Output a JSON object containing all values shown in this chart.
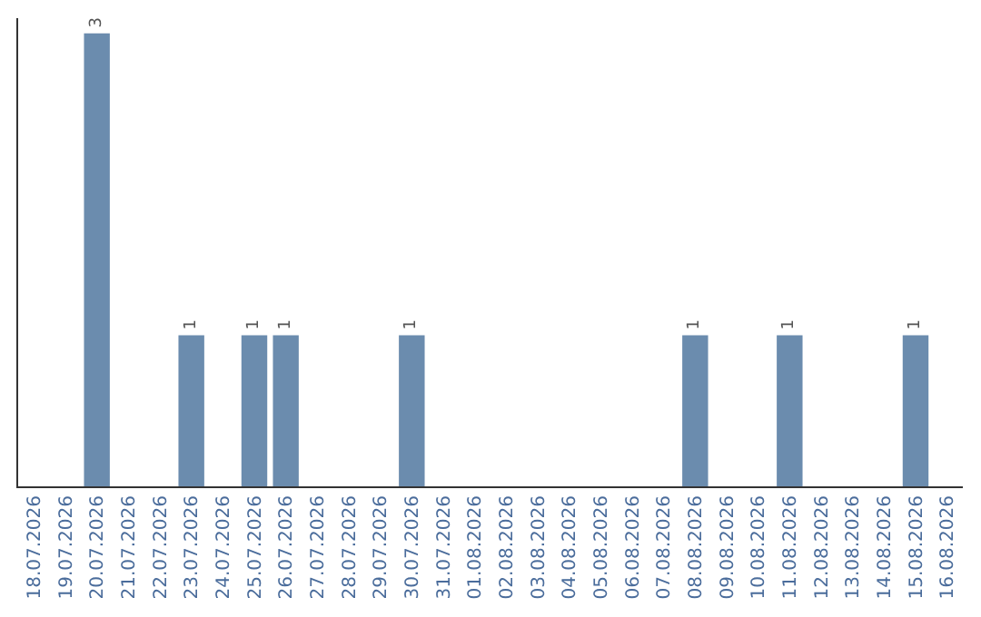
{
  "chart_data": {
    "type": "bar",
    "categories": [
      "18.07.2026",
      "19.07.2026",
      "20.07.2026",
      "21.07.2026",
      "22.07.2026",
      "23.07.2026",
      "24.07.2026",
      "25.07.2026",
      "26.07.2026",
      "27.07.2026",
      "28.07.2026",
      "29.07.2026",
      "30.07.2026",
      "31.07.2026",
      "01.08.2026",
      "02.08.2026",
      "03.08.2026",
      "04.08.2026",
      "05.08.2026",
      "06.08.2026",
      "07.08.2026",
      "08.08.2026",
      "09.08.2026",
      "10.08.2026",
      "11.08.2026",
      "12.08.2026",
      "13.08.2026",
      "14.08.2026",
      "15.08.2026",
      "16.08.2026"
    ],
    "values": [
      0,
      0,
      3,
      0,
      0,
      1,
      0,
      1,
      1,
      0,
      0,
      0,
      1,
      0,
      0,
      0,
      0,
      0,
      0,
      0,
      0,
      1,
      0,
      0,
      1,
      0,
      0,
      0,
      1,
      0
    ],
    "value_labels": [
      null,
      null,
      "3",
      null,
      null,
      "1",
      null,
      "1",
      "1",
      null,
      null,
      null,
      "1",
      null,
      null,
      null,
      null,
      null,
      null,
      null,
      null,
      "1",
      null,
      null,
      "1",
      null,
      null,
      null,
      "1",
      null
    ],
    "color": "#6b8cae",
    "ylim": [
      0,
      3.1
    ],
    "tick_labels": "x",
    "legend": false
  }
}
